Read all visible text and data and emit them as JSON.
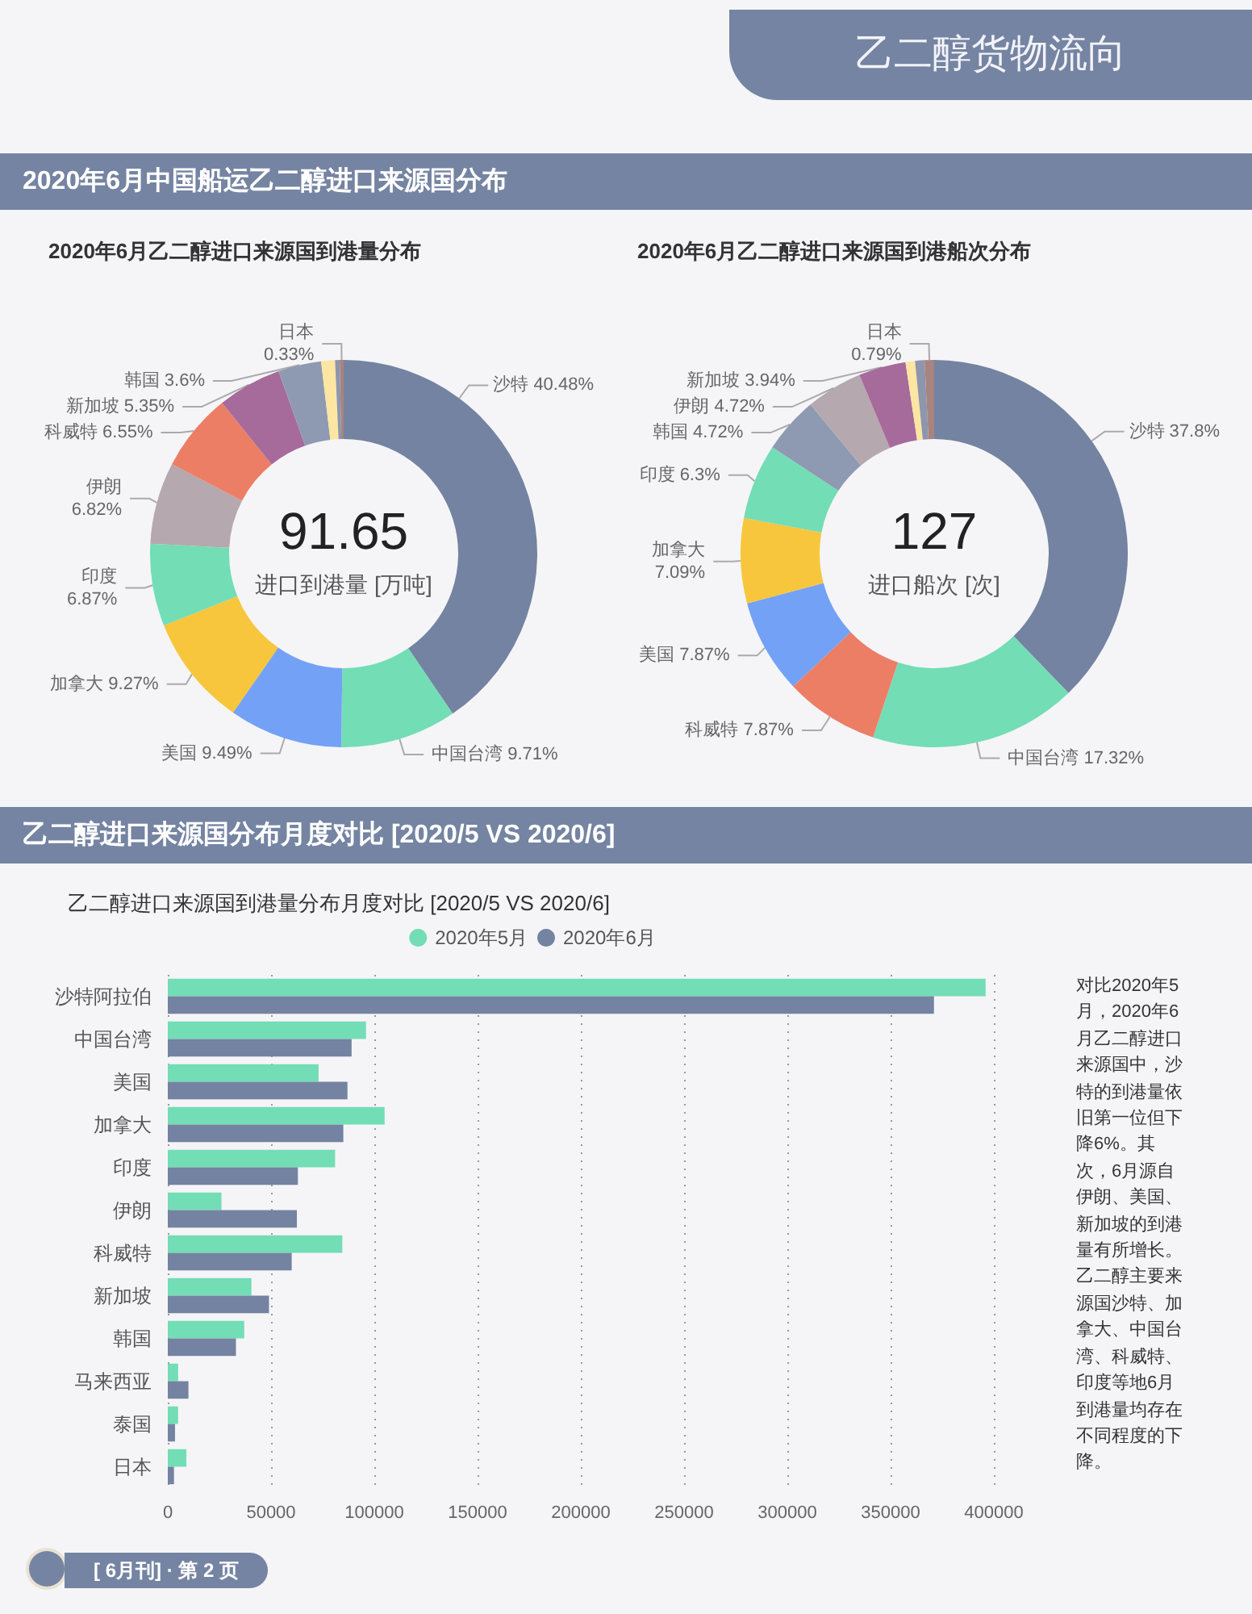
{
  "chart_data": [
    {
      "type": "donut",
      "title": "2020年6月乙二醇进口来源国到港量分布",
      "categories": [
        "沙特",
        "中国台湾",
        "美国",
        "加拿大",
        "印度",
        "伊朗",
        "科威特",
        "新加坡",
        "韩国",
        null,
        null,
        "日本"
      ],
      "values": [
        40.48,
        9.71,
        9.49,
        9.27,
        6.87,
        6.82,
        6.55,
        5.35,
        3.6,
        1.15,
        0.38,
        0.33
      ],
      "colors": [
        "#7483a1",
        "#73ddb5",
        "#73a1f6",
        "#f7c63c",
        "#73ddb5",
        "#b5a8ae",
        "#ec7e65",
        "#a66a9b",
        "#8e9ab2",
        "#fde6a2",
        "#8d96ad",
        "#a8837f"
      ],
      "value_labels": [
        "40.48%",
        "9.71%",
        "9.49%",
        "9.27%",
        "6.87%",
        "6.82%",
        "6.55%",
        "5.35%",
        "3.6%",
        null,
        null,
        "0.33%"
      ],
      "annotations": [
        "乙二醇货物流向",
        "2020年6月中国船运乙二醇进口来源国分布",
        "91.65",
        "进口到港量 [万吨]"
      ]
    },
    {
      "type": "donut",
      "title": "2020年6月乙二醇进口来源国到港船次分布",
      "categories": [
        "沙特",
        "中国台湾",
        "科威特",
        "美国",
        "加拿大",
        "印度",
        "韩国",
        "伊朗",
        "新加坡",
        null,
        null,
        "日本"
      ],
      "values": [
        37.8,
        17.32,
        7.87,
        7.87,
        7.09,
        6.3,
        4.72,
        4.72,
        3.94,
        0.79,
        0.79,
        0.79
      ],
      "colors": [
        "#7483a1",
        "#73ddb5",
        "#ec7e65",
        "#73a1f6",
        "#f7c63c",
        "#73ddb5",
        "#8e9ab2",
        "#b5a8ae",
        "#a66a9b",
        "#fde6a2",
        "#8d96ad",
        "#a8837f"
      ],
      "value_labels": [
        "37.8%",
        "17.32%",
        "7.87%",
        "7.87%",
        "7.09%",
        "6.3%",
        "4.72%",
        "4.72%",
        "3.94%",
        null,
        null,
        "0.79%"
      ],
      "annotations": [
        "127",
        "进口船次 [次]"
      ]
    },
    {
      "type": "bar",
      "orientation": "horizontal",
      "title": "乙二醇进口来源国到港量分布月度对比 [2020/5 VS 2020/6]",
      "categories": [
        "沙特阿拉伯",
        "中国台湾",
        "美国",
        "加拿大",
        "印度",
        "伊朗",
        "科威特",
        "新加坡",
        "韩国",
        "马来西亚",
        "泰国",
        "日本"
      ],
      "series": [
        {
          "name": "2020年5月",
          "color": "#73ddb5",
          "values": [
            396000,
            96000,
            73000,
            105000,
            81000,
            26000,
            84500,
            40500,
            37000,
            5000,
            5000,
            9000
          ]
        },
        {
          "name": "2020年6月",
          "color": "#7483a1",
          "values": [
            371000,
            89000,
            87000,
            85000,
            63000,
            62500,
            60000,
            49000,
            33000,
            10000,
            3500,
            3000
          ]
        }
      ],
      "xlim": [
        0,
        400000
      ],
      "xticks": [
        0,
        50000,
        100000,
        150000,
        200000,
        250000,
        300000,
        350000,
        400000
      ],
      "grid": "x",
      "legend": "top",
      "annotations": [
        "乙二醇进口来源国分布月度对比 [2020/5 VS 2020/6]",
        "对比2020年5月，2020年6月乙二醇进口来源国中，沙特的到港量依旧第一位但下降6%。其次，6月源自伊朗、美国、新加坡的到港量有所增长。乙二醇主要来源国沙特、加拿大、中国台湾、科威特、印度等地6月到港量均存在不同程度的下降。",
        "[ 6月刊] · 第 2 页"
      ]
    }
  ]
}
